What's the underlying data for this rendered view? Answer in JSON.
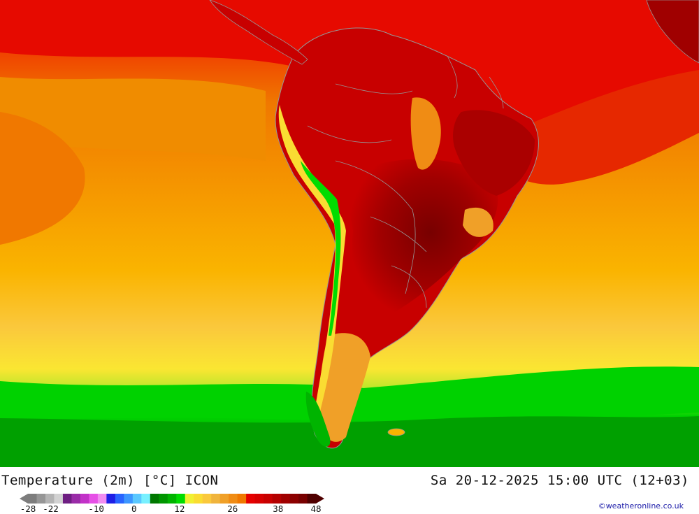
{
  "title": "Temperature (2m) [°C] ICON",
  "datetime": "Sa 20-12-2025 15:00 UTC (12+03)",
  "credit": "©weatheronline.co.uk",
  "legend": {
    "tick_labels": [
      "-28",
      "-22",
      "-10",
      "0",
      "12",
      "26",
      "38",
      "48"
    ],
    "tick_values": [
      -28,
      -22,
      -10,
      0,
      12,
      26,
      38,
      48
    ],
    "range": [
      -28,
      48
    ],
    "colors": [
      "#7d7d7d",
      "#969696",
      "#b4b4b4",
      "#d2d2d2",
      "#6e1e82",
      "#9a2ca8",
      "#c232c8",
      "#e650e6",
      "#f08cf0",
      "#1e1ee6",
      "#2864ff",
      "#3c96ff",
      "#5ac8ff",
      "#78f0ff",
      "#007800",
      "#009600",
      "#00b400",
      "#00dc00",
      "#f0f032",
      "#fadc32",
      "#fac83c",
      "#f0b43c",
      "#f0a028",
      "#f08c14",
      "#f07800",
      "#e60000",
      "#d70000",
      "#c80000",
      "#b40000",
      "#a00000",
      "#8c0000",
      "#780000",
      "#500000"
    ]
  },
  "map": {
    "region": "South America",
    "field": "Temperature (2m)",
    "colors": {
      "land_hot": "#960000",
      "land_warm": "#c80000",
      "sea_tropic": "#e61e00",
      "sea_subtropic": "#f07800",
      "sea_mid": "#fa9600",
      "sea_cool": "#fab400",
      "sea_cold": "#fae632",
      "sea_polar": "#00c800",
      "andes_snow": "#00e600",
      "border": "#969696"
    }
  }
}
